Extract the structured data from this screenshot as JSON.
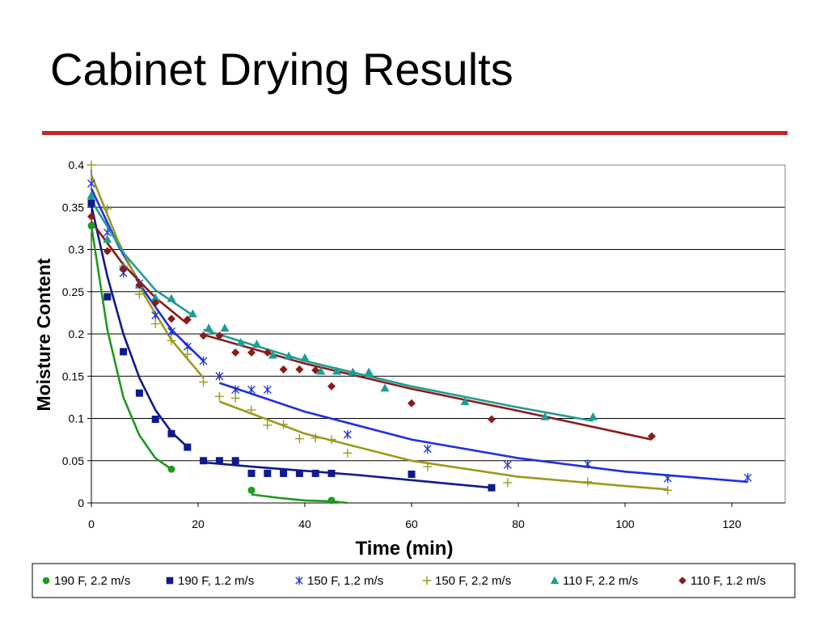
{
  "slide": {
    "title": "Cabinet Drying Results"
  },
  "chart_data": {
    "type": "scatter",
    "title": "",
    "xlabel": "Time (min)",
    "ylabel": "Moisture Content",
    "xlim": [
      0,
      130
    ],
    "ylim": [
      0,
      0.4
    ],
    "xticks": [
      0,
      20,
      40,
      60,
      80,
      100,
      120
    ],
    "yticks": [
      0,
      0.05,
      0.1,
      0.15,
      0.2,
      0.25,
      0.3,
      0.35,
      0.4
    ],
    "xtick_labels": [
      "0",
      "20",
      "40",
      "60",
      "80",
      "100",
      "120"
    ],
    "ytick_labels": [
      "0",
      "0.05",
      "0.1",
      "0.15",
      "0.2",
      "0.25",
      "0.3",
      "0.35",
      "0.4"
    ],
    "grid": "horizontal",
    "legend_position": "bottom",
    "series": [
      {
        "name": "190 F, 2.2 m/s",
        "color": "#1e9a1e",
        "marker": "circle",
        "points": [
          [
            0,
            0.328
          ],
          [
            15,
            0.04
          ],
          [
            30,
            0.015
          ],
          [
            45,
            0.003
          ]
        ],
        "trendlines": [
          [
            [
              0,
              0.328
            ],
            [
              3,
              0.205
            ],
            [
              6,
              0.125
            ],
            [
              9,
              0.08
            ],
            [
              12,
              0.053
            ],
            [
              15,
              0.04
            ]
          ],
          [
            [
              30,
              0.01
            ],
            [
              35,
              0.006
            ],
            [
              40,
              0.003
            ],
            [
              45,
              0.002
            ],
            [
              48,
              0.0
            ]
          ]
        ]
      },
      {
        "name": "190 F, 1.2 m/s",
        "color": "#0e1a8e",
        "marker": "square",
        "points": [
          [
            0,
            0.355
          ],
          [
            3,
            0.244
          ],
          [
            6,
            0.179
          ],
          [
            9,
            0.13
          ],
          [
            12,
            0.099
          ],
          [
            15,
            0.082
          ],
          [
            18,
            0.066
          ],
          [
            21,
            0.05
          ],
          [
            24,
            0.05
          ],
          [
            27,
            0.05
          ],
          [
            30,
            0.035
          ],
          [
            33,
            0.035
          ],
          [
            36,
            0.035
          ],
          [
            39,
            0.035
          ],
          [
            42,
            0.035
          ],
          [
            45,
            0.035
          ],
          [
            60,
            0.034
          ],
          [
            75,
            0.018
          ]
        ],
        "trendlines": [
          [
            [
              0,
              0.352
            ],
            [
              3,
              0.268
            ],
            [
              6,
              0.2
            ],
            [
              9,
              0.148
            ],
            [
              12,
              0.11
            ],
            [
              15,
              0.084
            ],
            [
              18,
              0.066
            ]
          ],
          [
            [
              21,
              0.048
            ],
            [
              30,
              0.043
            ],
            [
              40,
              0.038
            ],
            [
              50,
              0.033
            ],
            [
              60,
              0.027
            ],
            [
              70,
              0.021
            ],
            [
              75,
              0.018
            ]
          ]
        ]
      },
      {
        "name": "150 F, 1.2 m/s",
        "color": "#1f2fdf",
        "marker": "asterisk",
        "points": [
          [
            0,
            0.378
          ],
          [
            3,
            0.32
          ],
          [
            6,
            0.272
          ],
          [
            9,
            0.26
          ],
          [
            12,
            0.222
          ],
          [
            15,
            0.203
          ],
          [
            18,
            0.185
          ],
          [
            21,
            0.168
          ],
          [
            24,
            0.15
          ],
          [
            27,
            0.134
          ],
          [
            30,
            0.134
          ],
          [
            33,
            0.134
          ],
          [
            48,
            0.081
          ],
          [
            63,
            0.064
          ],
          [
            78,
            0.045
          ],
          [
            93,
            0.046
          ],
          [
            108,
            0.029
          ],
          [
            123,
            0.03
          ]
        ],
        "trendlines": [
          [
            [
              0,
              0.372
            ],
            [
              5,
              0.305
            ],
            [
              10,
              0.25
            ],
            [
              15,
              0.205
            ],
            [
              21,
              0.168
            ]
          ],
          [
            [
              24,
              0.142
            ],
            [
              40,
              0.108
            ],
            [
              60,
              0.075
            ],
            [
              80,
              0.053
            ],
            [
              100,
              0.037
            ],
            [
              123,
              0.025
            ]
          ]
        ]
      },
      {
        "name": "150 F, 2.2 m/s",
        "color": "#9a9a1a",
        "marker": "plus",
        "points": [
          [
            0,
            0.4
          ],
          [
            3,
            0.348
          ],
          [
            6,
            0.28
          ],
          [
            9,
            0.247
          ],
          [
            12,
            0.212
          ],
          [
            15,
            0.192
          ],
          [
            18,
            0.176
          ],
          [
            21,
            0.143
          ],
          [
            24,
            0.126
          ],
          [
            27,
            0.124
          ],
          [
            30,
            0.11
          ],
          [
            33,
            0.092
          ],
          [
            36,
            0.093
          ],
          [
            39,
            0.076
          ],
          [
            42,
            0.077
          ],
          [
            45,
            0.075
          ],
          [
            48,
            0.059
          ],
          [
            63,
            0.043
          ],
          [
            78,
            0.024
          ],
          [
            93,
            0.025
          ],
          [
            108,
            0.015
          ]
        ],
        "trendlines": [
          [
            [
              0,
              0.388
            ],
            [
              5,
              0.31
            ],
            [
              10,
              0.245
            ],
            [
              15,
              0.193
            ],
            [
              21,
              0.148
            ]
          ],
          [
            [
              24,
              0.12
            ],
            [
              40,
              0.082
            ],
            [
              60,
              0.05
            ],
            [
              80,
              0.031
            ],
            [
              100,
              0.02
            ],
            [
              108,
              0.016
            ]
          ]
        ]
      },
      {
        "name": "110 F, 2.2 m/s",
        "color": "#1f9c94",
        "marker": "triangle",
        "points": [
          [
            0,
            0.364
          ],
          [
            3,
            0.312
          ],
          [
            6,
            0.28
          ],
          [
            9,
            0.258
          ],
          [
            12,
            0.243
          ],
          [
            15,
            0.242
          ],
          [
            19,
            0.224
          ],
          [
            22,
            0.207
          ],
          [
            25,
            0.207
          ],
          [
            28,
            0.19
          ],
          [
            31,
            0.188
          ],
          [
            34,
            0.175
          ],
          [
            37,
            0.174
          ],
          [
            40,
            0.172
          ],
          [
            43,
            0.156
          ],
          [
            46,
            0.156
          ],
          [
            49,
            0.155
          ],
          [
            52,
            0.155
          ],
          [
            55,
            0.136
          ],
          [
            70,
            0.12
          ],
          [
            85,
            0.102
          ],
          [
            94,
            0.102
          ]
        ],
        "trendlines": [
          [
            [
              0,
              0.358
            ],
            [
              6,
              0.296
            ],
            [
              12,
              0.252
            ],
            [
              19,
              0.222
            ]
          ],
          [
            [
              21,
              0.205
            ],
            [
              40,
              0.168
            ],
            [
              60,
              0.138
            ],
            [
              80,
              0.113
            ],
            [
              94,
              0.097
            ]
          ]
        ]
      },
      {
        "name": "110 F, 1.2 m/s",
        "color": "#8b1a1a",
        "marker": "diamond",
        "points": [
          [
            0,
            0.339
          ],
          [
            3,
            0.298
          ],
          [
            6,
            0.277
          ],
          [
            9,
            0.258
          ],
          [
            12,
            0.237
          ],
          [
            15,
            0.218
          ],
          [
            18,
            0.217
          ],
          [
            21,
            0.198
          ],
          [
            24,
            0.198
          ],
          [
            27,
            0.178
          ],
          [
            30,
            0.178
          ],
          [
            33,
            0.178
          ],
          [
            36,
            0.158
          ],
          [
            39,
            0.158
          ],
          [
            42,
            0.157
          ],
          [
            45,
            0.138
          ],
          [
            60,
            0.118
          ],
          [
            75,
            0.099
          ],
          [
            105,
            0.079
          ]
        ],
        "trendlines": [
          [
            [
              0,
              0.333
            ],
            [
              6,
              0.282
            ],
            [
              12,
              0.243
            ],
            [
              18,
              0.212
            ]
          ],
          [
            [
              21,
              0.199
            ],
            [
              40,
              0.165
            ],
            [
              60,
              0.135
            ],
            [
              80,
              0.109
            ],
            [
              105,
              0.075
            ]
          ]
        ]
      }
    ]
  }
}
